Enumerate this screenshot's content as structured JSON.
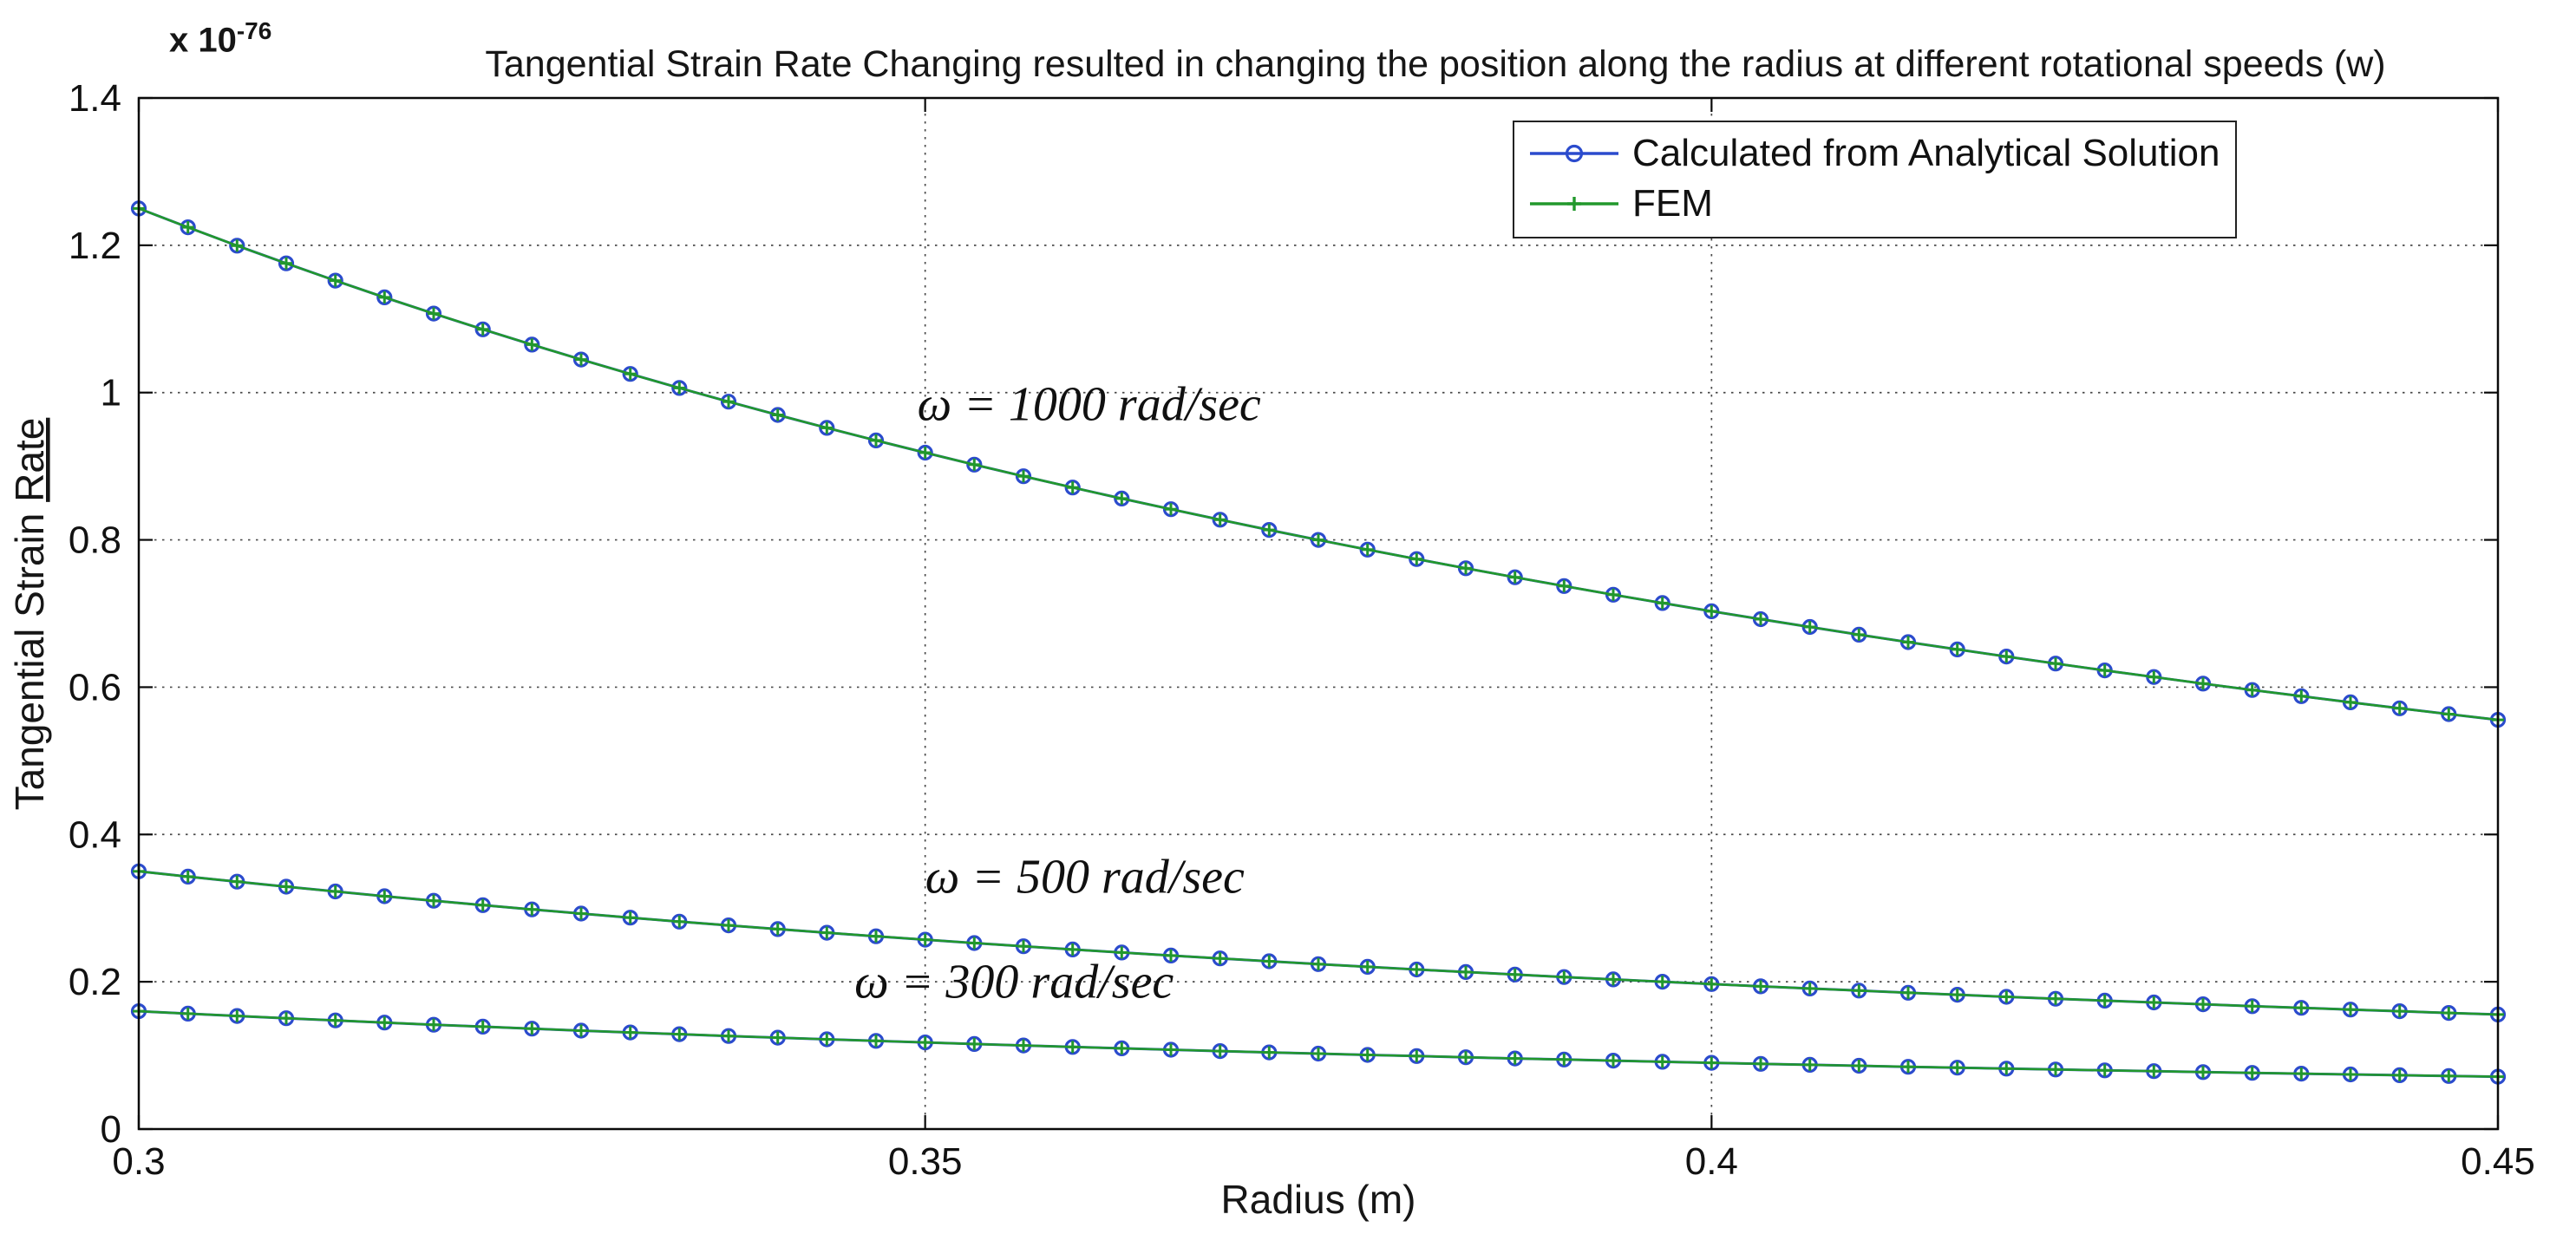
{
  "figure": {
    "title": "Tangential Strain Rate Changing resulted in changing the position along the radius at different rotational speeds (w)",
    "xlabel": "Radius (m)",
    "ylabel_prefix": "Tangential Strain ",
    "ylabel_underlined": "Rate",
    "y_scale_prefix": "x 10",
    "y_scale_exponent": "-76"
  },
  "legend": {
    "position": "top-right",
    "entries": [
      {
        "label": "Calculated from Analytical Solution",
        "color": "#2b4bcd",
        "marker": "circle"
      },
      {
        "label": "FEM",
        "color": "#22982c",
        "marker": "plus"
      }
    ]
  },
  "chart_data": {
    "type": "line",
    "title": "Tangential Strain Rate Changing resulted in changing the position along the radius at different rotational speeds (w)",
    "xlabel": "Radius (m)",
    "ylabel": "Tangential Strain Rate",
    "y_scale_factor": "1e-76",
    "xlim": [
      0.3,
      0.45
    ],
    "ylim": [
      0,
      1.4
    ],
    "xticks": [
      0.3,
      0.35,
      0.4,
      0.45
    ],
    "xtick_labels": [
      "0.3",
      "0.35",
      "0.4",
      "0.45"
    ],
    "yticks": [
      0,
      0.2,
      0.4,
      0.6,
      0.8,
      1,
      1.2,
      1.4
    ],
    "ytick_labels": [
      "0",
      "0.2",
      "0.4",
      "0.6",
      "0.8",
      "1",
      "1.2",
      "1.4"
    ],
    "grid": "dotted",
    "legend_position": "top-right",
    "methods": [
      "Calculated from Analytical Solution",
      "FEM"
    ],
    "methods_note": "Analytical and FEM curves overlap within marker size for all three speeds",
    "x": [
      0.3,
      0.303125,
      0.30625,
      0.309375,
      0.3125,
      0.315625,
      0.31875,
      0.321875,
      0.325,
      0.328125,
      0.33125,
      0.334375,
      0.3375,
      0.340625,
      0.34375,
      0.346875,
      0.35,
      0.353125,
      0.35625,
      0.359375,
      0.3625,
      0.365625,
      0.36875,
      0.371875,
      0.375,
      0.378125,
      0.38125,
      0.384375,
      0.3875,
      0.390625,
      0.39375,
      0.396875,
      0.4,
      0.403125,
      0.40625,
      0.409375,
      0.4125,
      0.415625,
      0.41875,
      0.421875,
      0.425,
      0.428125,
      0.43125,
      0.434375,
      0.4375,
      0.440625,
      0.44375,
      0.446875,
      0.45
    ],
    "series": [
      {
        "name": "omega = 1000 rad/sec",
        "values": [
          1.25,
          1.2244,
          1.1995,
          1.1754,
          1.152,
          1.1293,
          1.1073,
          1.0859,
          1.0651,
          1.0449,
          1.0253,
          1.0062,
          0.9877,
          0.9696,
          0.9521,
          0.935,
          0.9184,
          0.9022,
          0.8864,
          0.8711,
          0.8561,
          0.8416,
          0.8274,
          0.8135,
          0.8,
          0.7868,
          0.774,
          0.7615,
          0.7492,
          0.7373,
          0.7256,
          0.7142,
          0.7031,
          0.6923,
          0.6817,
          0.6713,
          0.6612,
          0.6513,
          0.6416,
          0.6321,
          0.6228,
          0.6138,
          0.6049,
          0.5962,
          0.5878,
          0.5794,
          0.5713,
          0.5634,
          0.5556
        ]
      },
      {
        "name": "omega = 500 rad/sec",
        "values": [
          0.35,
          0.3428,
          0.3359,
          0.3291,
          0.3226,
          0.3162,
          0.31,
          0.304,
          0.2982,
          0.2926,
          0.2871,
          0.2817,
          0.2766,
          0.2715,
          0.2666,
          0.2618,
          0.2571,
          0.2526,
          0.2482,
          0.2439,
          0.2397,
          0.2356,
          0.2317,
          0.2278,
          0.224,
          0.2203,
          0.2167,
          0.2132,
          0.2098,
          0.2064,
          0.2032,
          0.2,
          0.1969,
          0.1938,
          0.1909,
          0.188,
          0.1851,
          0.1824,
          0.1796,
          0.177,
          0.1744,
          0.1719,
          0.1694,
          0.1669,
          0.1646,
          0.1622,
          0.16,
          0.1577,
          0.1556
        ]
      },
      {
        "name": "omega = 300 rad/sec",
        "values": [
          0.16,
          0.1567,
          0.1535,
          0.1505,
          0.1475,
          0.1446,
          0.1417,
          0.139,
          0.1363,
          0.1337,
          0.1312,
          0.1288,
          0.1264,
          0.1241,
          0.1219,
          0.1197,
          0.1176,
          0.1155,
          0.1135,
          0.1115,
          0.1096,
          0.1077,
          0.1059,
          0.1041,
          0.1024,
          0.1007,
          0.0991,
          0.0975,
          0.0959,
          0.0944,
          0.0929,
          0.0914,
          0.09,
          0.0886,
          0.0873,
          0.0859,
          0.0846,
          0.0834,
          0.0821,
          0.0809,
          0.0797,
          0.0786,
          0.0774,
          0.0763,
          0.0752,
          0.0742,
          0.0731,
          0.0721,
          0.0711
        ]
      }
    ],
    "annotations": [
      {
        "text": "ω = 1000 rad/sec",
        "x": 0.3495,
        "y": 0.985
      },
      {
        "text": "ω = 500 rad/sec",
        "x": 0.35,
        "y": 0.343
      },
      {
        "text": "ω = 300 rad/sec",
        "x": 0.3455,
        "y": 0.201
      }
    ],
    "colors": {
      "analytical": "#2b4bcd",
      "fem": "#22982c",
      "grid": "#4a4a4a",
      "axis": "#000000",
      "background": "#ffffff"
    }
  }
}
